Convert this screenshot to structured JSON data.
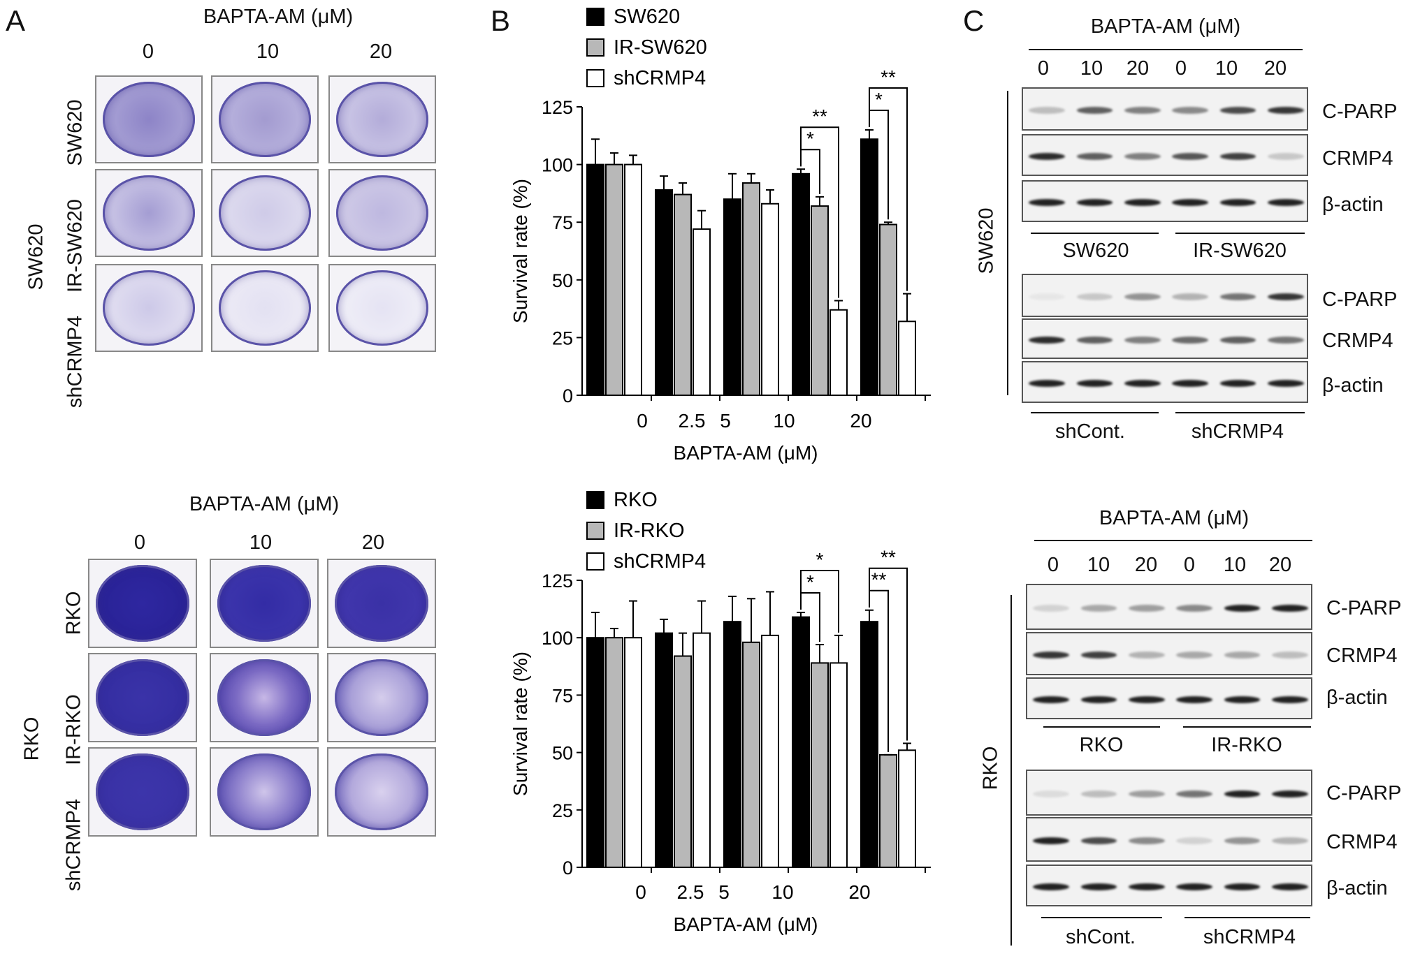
{
  "panels": {
    "a": "A",
    "b": "B",
    "c": "C"
  },
  "panel_a": {
    "top": {
      "title": "BAPTA-AM (μM)",
      "doses": [
        "0",
        "10",
        "20"
      ],
      "group": "SW620",
      "rows": [
        "SW620",
        "IR-SW620",
        "shCRMP4"
      ]
    },
    "bottom": {
      "title": "BAPTA-AM (μM)",
      "doses": [
        "0",
        "10",
        "20"
      ],
      "group": "RKO",
      "rows": [
        "RKO",
        "IR-RKO",
        "shCRMP4"
      ]
    }
  },
  "chart_data": [
    {
      "type": "bar",
      "categories": [
        "0",
        "2.5",
        "5",
        "10",
        "20"
      ],
      "series": [
        {
          "name": "SW620",
          "values": [
            100,
            89,
            85,
            96,
            111
          ],
          "errors": [
            11,
            6,
            11,
            2,
            4
          ]
        },
        {
          "name": "IR-SW620",
          "values": [
            100,
            87,
            92,
            82,
            74
          ],
          "errors": [
            5,
            5,
            4,
            4,
            1
          ]
        },
        {
          "name": "shCRMP4",
          "values": [
            100,
            72,
            83,
            37,
            32
          ],
          "errors": [
            4,
            8,
            6,
            4,
            12
          ]
        }
      ],
      "ylabel": "Survival rate (%)",
      "xlabel": "BAPTA-AM (μM)",
      "ylim": [
        0,
        125
      ],
      "yticks": [
        "0",
        "25",
        "50",
        "75",
        "100",
        "125"
      ],
      "significance": [
        {
          "category": "10",
          "pair": "SW620 vs IR-SW620",
          "label": "*"
        },
        {
          "category": "10",
          "pair": "SW620 vs shCRMP4",
          "label": "**"
        },
        {
          "category": "20",
          "pair": "SW620 vs IR-SW620",
          "label": "*"
        },
        {
          "category": "20",
          "pair": "SW620 vs shCRMP4",
          "label": "**"
        }
      ],
      "legend_position": "top-left",
      "colors": [
        "#000000",
        "#b8b8b8",
        "#ffffff"
      ]
    },
    {
      "type": "bar",
      "categories": [
        "0",
        "2.5",
        "5",
        "10",
        "20"
      ],
      "series": [
        {
          "name": "RKO",
          "values": [
            100,
            102,
            107,
            109,
            107
          ],
          "errors": [
            11,
            6,
            11,
            2,
            5
          ]
        },
        {
          "name": "IR-RKO",
          "values": [
            100,
            92,
            98,
            89,
            49
          ],
          "errors": [
            4,
            10,
            19,
            8,
            0
          ]
        },
        {
          "name": "shCRMP4",
          "values": [
            100,
            102,
            101,
            89,
            51
          ],
          "errors": [
            16,
            14,
            19,
            12,
            3
          ]
        }
      ],
      "ylabel": "Survival rate (%)",
      "xlabel": "BAPTA-AM (μM)",
      "ylim": [
        0,
        125
      ],
      "yticks": [
        "0",
        "25",
        "50",
        "75",
        "100",
        "125"
      ],
      "significance": [
        {
          "category": "10",
          "pair": "RKO vs IR-RKO",
          "label": "*"
        },
        {
          "category": "10",
          "pair": "RKO vs shCRMP4",
          "label": "*"
        },
        {
          "category": "20",
          "pair": "RKO vs IR-RKO",
          "label": "**"
        },
        {
          "category": "20",
          "pair": "RKO vs shCRMP4",
          "label": "**"
        }
      ],
      "legend_position": "top-left",
      "colors": [
        "#000000",
        "#b8b8b8",
        "#ffffff"
      ]
    }
  ],
  "panel_c": {
    "top": {
      "title": "BAPTA-AM (μM)",
      "doses": [
        "0",
        "10",
        "20",
        "0",
        "10",
        "20"
      ],
      "group": "SW620",
      "labels_1": [
        "C-PARP",
        "CRMP4",
        "β-actin"
      ],
      "groups_1": [
        "SW620",
        "IR-SW620"
      ],
      "labels_2": [
        "C-PARP",
        "CRMP4",
        "β-actin"
      ],
      "groups_2": [
        "shCont.",
        "shCRMP4"
      ]
    },
    "bottom": {
      "title": "BAPTA-AM (μM)",
      "doses": [
        "0",
        "10",
        "20",
        "0",
        "10",
        "20"
      ],
      "group": "RKO",
      "labels_1": [
        "C-PARP",
        "CRMP4",
        "β-actin"
      ],
      "groups_1": [
        "RKO",
        "IR-RKO"
      ],
      "labels_2": [
        "C-PARP",
        "CRMP4",
        "β-actin"
      ],
      "groups_2": [
        "shCont.",
        "shCRMP4"
      ]
    }
  }
}
